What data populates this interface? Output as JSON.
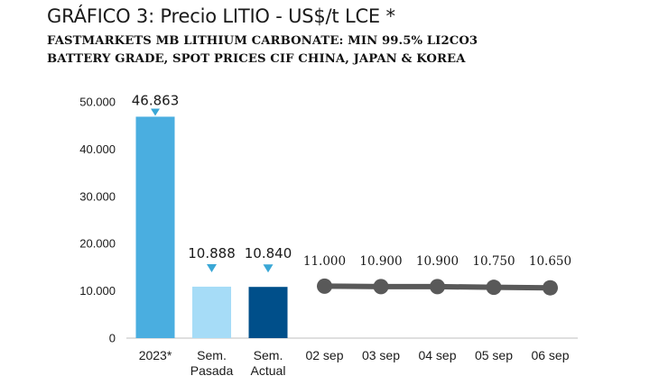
{
  "chart_data": {
    "type": "bar",
    "title": "GRÁFICO 3: Precio LITIO - US$/t LCE *",
    "subtitle_lines": [
      "FASTMARKETS MB LITHIUM CARBONATE: MIN 99.5% LI2CO3",
      "BATTERY GRADE, SPOT PRICES CIF CHINA, JAPAN & KOREA"
    ],
    "xlabel": "",
    "ylabel": "",
    "ylim": [
      0,
      50000
    ],
    "yticks": [
      {
        "value": 0,
        "label": "0"
      },
      {
        "value": 10000,
        "label": "10.000"
      },
      {
        "value": 20000,
        "label": "20.000"
      },
      {
        "value": 30000,
        "label": "30.000"
      },
      {
        "value": 40000,
        "label": "40.000"
      },
      {
        "value": 50000,
        "label": "50.000"
      }
    ],
    "bars": [
      {
        "category": [
          "2023*"
        ],
        "value": 46863,
        "label": "46.863",
        "color": "#4aaee0"
      },
      {
        "category": [
          "Sem.",
          "Pasada"
        ],
        "value": 10888,
        "label": "10.888",
        "color": "#a6dcf7"
      },
      {
        "category": [
          "Sem.",
          "Actual"
        ],
        "value": 10840,
        "label": "10.840",
        "color": "#004f8a"
      }
    ],
    "line": {
      "categories": [
        "02 sep",
        "03 sep",
        "04 sep",
        "05 sep",
        "06 sep"
      ],
      "values": [
        11000,
        10900,
        10900,
        10750,
        10650
      ],
      "labels": [
        "11.000",
        "10.900",
        "10.900",
        "10.750",
        "10.650"
      ],
      "color": "#595959"
    },
    "marker_color": "#3aa7d6",
    "axis_color": "#bfbfbf"
  }
}
